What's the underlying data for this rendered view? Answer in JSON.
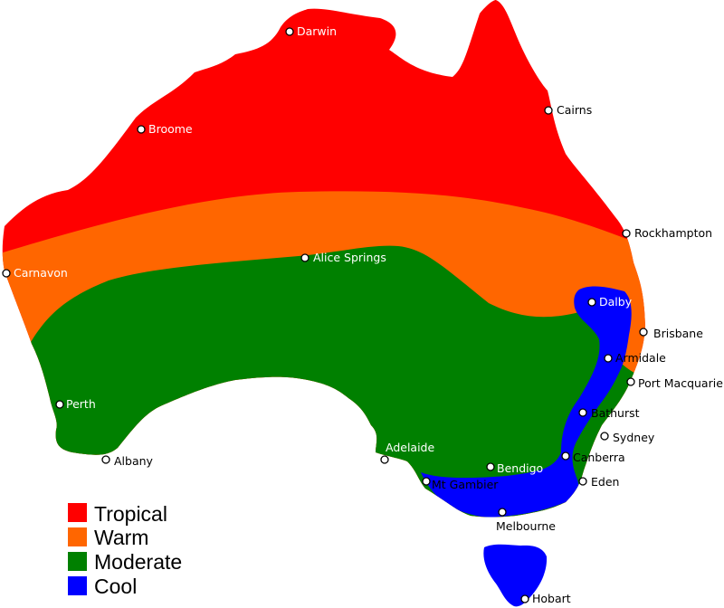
{
  "legend": [
    {
      "label": "Tropical",
      "color": "#ff0000"
    },
    {
      "label": "Warm",
      "color": "#ff6600"
    },
    {
      "label": "Moderate",
      "color": "#008000"
    },
    {
      "label": "Cool",
      "color": "#0000ff"
    }
  ],
  "cities": [
    {
      "name": "Darwin",
      "label_color": "#ffffff"
    },
    {
      "name": "Broome",
      "label_color": "#ffffff"
    },
    {
      "name": "Cairns",
      "label_color": "#000000"
    },
    {
      "name": "Rockhampton",
      "label_color": "#000000"
    },
    {
      "name": "Carnavon",
      "label_color": "#ffffff"
    },
    {
      "name": "Alice Springs",
      "label_color": "#ffffff"
    },
    {
      "name": "Dalby",
      "label_color": "#ffffff"
    },
    {
      "name": "Brisbane",
      "label_color": "#000000"
    },
    {
      "name": "Armidale",
      "label_color": "#000000"
    },
    {
      "name": "Port Macquarie",
      "label_color": "#000000"
    },
    {
      "name": "Perth",
      "label_color": "#ffffff"
    },
    {
      "name": "Bathurst",
      "label_color": "#000000"
    },
    {
      "name": "Sydney",
      "label_color": "#000000"
    },
    {
      "name": "Albany",
      "label_color": "#000000"
    },
    {
      "name": "Adelaide",
      "label_color": "#ffffff"
    },
    {
      "name": "Bendigo",
      "label_color": "#ffffff"
    },
    {
      "name": "Canberra",
      "label_color": "#000000"
    },
    {
      "name": "Eden",
      "label_color": "#000000"
    },
    {
      "name": "Mt Gambier",
      "label_color": "#000000"
    },
    {
      "name": "Melbourne",
      "label_color": "#000000"
    },
    {
      "name": "Hobart",
      "label_color": "#000000"
    }
  ]
}
